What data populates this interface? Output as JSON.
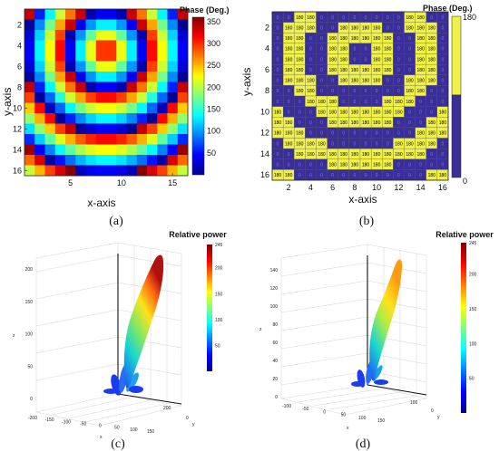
{
  "chart_data": [
    {
      "type": "heatmap",
      "panel": "(a)",
      "title": "Phase (Deg.)",
      "xlabel": "x-axis",
      "ylabel": "y-axis",
      "x_ticks": [
        5,
        10,
        15
      ],
      "y_ticks": [
        2,
        4,
        6,
        8,
        10,
        12,
        14,
        16
      ],
      "colorbar": {
        "ticks": [
          50,
          100,
          150,
          200,
          250,
          300,
          350
        ],
        "range": [
          0,
          360
        ],
        "colormap": "jet"
      },
      "grid_size": [
        16,
        16
      ],
      "beam_center": [
        8.5,
        4.5
      ],
      "ring_period_cells": 4.0
    },
    {
      "type": "heatmap",
      "panel": "(b)",
      "title": "Phase (Deg.)",
      "xlabel": "x-axis",
      "ylabel": "y-axis",
      "x_ticks": [
        2,
        4,
        6,
        8,
        10,
        12,
        14,
        16
      ],
      "y_ticks": [
        2,
        4,
        6,
        8,
        10,
        12,
        14,
        16
      ],
      "colorbar": {
        "ticks": [
          0,
          180
        ]
      },
      "states": [
        0,
        180
      ],
      "colors": {
        "state180": "#f0f04a",
        "state0": "#3a2f9a"
      },
      "grid_size": [
        16,
        16
      ],
      "beam_center": [
        8.5,
        4.5
      ],
      "ring_period_cells": 4.0
    },
    {
      "type": "3d-surface",
      "panel": "(c)",
      "title": "Relative power",
      "xlabel": "x",
      "ylabel": "y",
      "zlabel": "z",
      "z_ticks": [
        0,
        50,
        100,
        150,
        200
      ],
      "x_ticks": [
        -200,
        -150,
        -100,
        -50,
        0,
        50,
        100,
        150
      ],
      "y_ticks": [
        0,
        200
      ],
      "colorbar": {
        "ticks": [
          50,
          100,
          150,
          200,
          245
        ],
        "range": [
          0,
          245
        ],
        "colormap": "jet"
      }
    },
    {
      "type": "3d-surface",
      "panel": "(d)",
      "title": "Relative power",
      "xlabel": "x",
      "ylabel": "y",
      "zlabel": "z",
      "z_ticks": [
        0,
        20,
        40,
        60,
        80,
        100,
        120,
        140
      ],
      "x_ticks": [
        -100,
        -50,
        0,
        50,
        100,
        150
      ],
      "y_ticks": [
        0,
        100
      ],
      "colorbar": {
        "ticks": [
          50,
          100,
          150,
          200,
          245
        ],
        "range": [
          0,
          245
        ],
        "colormap": "jet"
      }
    }
  ],
  "captions": {
    "a": "(a)",
    "b": "(b)",
    "c": "(c)",
    "d": "(d)"
  }
}
